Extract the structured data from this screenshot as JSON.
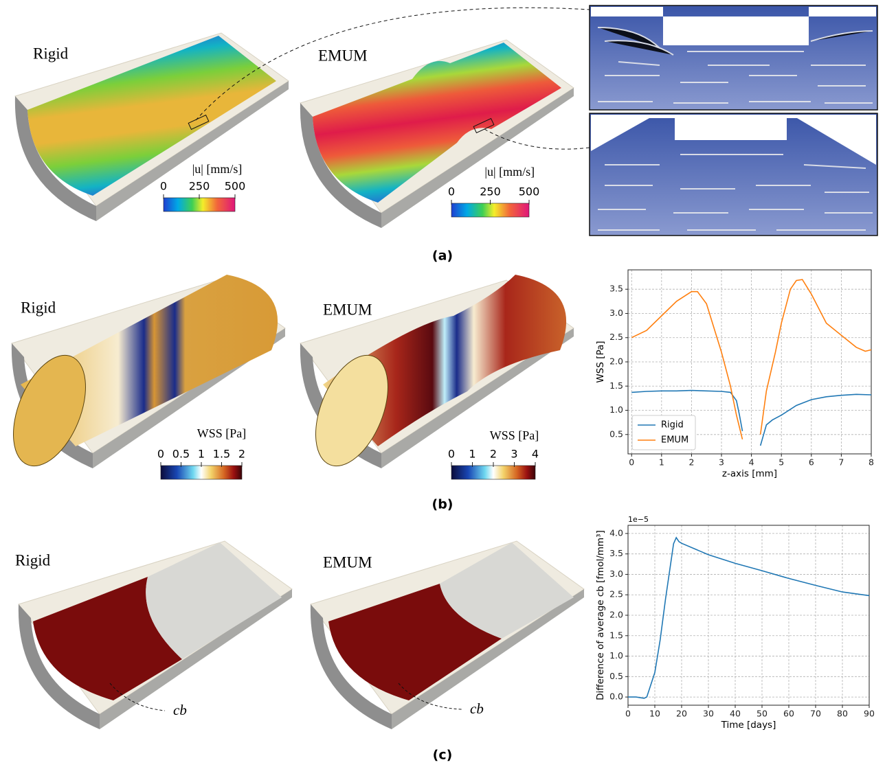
{
  "panels": [
    {
      "label": "(a)",
      "models": [
        {
          "name": "Rigid",
          "colorbar": {
            "title": "|u| [mm/s]",
            "ticks": [
              "0",
              "250",
              "500"
            ]
          }
        },
        {
          "name": "EMUM",
          "colorbar": {
            "title": "|u| [mm/s]",
            "ticks": [
              "0",
              "250",
              "500"
            ]
          }
        }
      ]
    },
    {
      "label": "(b)",
      "models": [
        {
          "name": "Rigid",
          "colorbar": {
            "title": "WSS [Pa]",
            "ticks": [
              "0",
              "0.5",
              "1",
              "1.5",
              "2"
            ]
          }
        },
        {
          "name": "EMUM",
          "colorbar": {
            "title": "WSS [Pa]",
            "ticks": [
              "0",
              "1",
              "2",
              "3",
              "4"
            ]
          }
        }
      ]
    },
    {
      "label": "(c)",
      "models": [
        {
          "name": "Rigid",
          "annotation": "cb"
        },
        {
          "name": "EMUM",
          "annotation": "cb"
        }
      ]
    }
  ],
  "chart_data": [
    {
      "type": "line",
      "xlabel": "z-axis [mm]",
      "ylabel": "WSS [Pa]",
      "xlim": [
        -0.12,
        8
      ],
      "ylim": [
        0.1,
        3.9
      ],
      "xticks": [
        0,
        1,
        2,
        3,
        4,
        5,
        6,
        7,
        8
      ],
      "yticks": [
        0.5,
        {
          "value": 1,
          "label": "1.0"
        },
        1.5,
        {
          "value": 2,
          "label": "2.0"
        },
        2.5,
        {
          "value": 3,
          "label": "3.0"
        },
        3.5
      ],
      "grid": true,
      "legend": "lower left",
      "series": [
        {
          "name": "Rigid",
          "color": "#1f77b4",
          "x": [
            0,
            0.5,
            1,
            1.5,
            2,
            2.5,
            3,
            3.3,
            3.5,
            3.6,
            3.7,
            3.95,
            4.3,
            4.5,
            4.7,
            5,
            5.5,
            6,
            6.5,
            7,
            7.5,
            8
          ],
          "values": [
            1.37,
            1.39,
            1.4,
            1.4,
            1.41,
            1.4,
            1.39,
            1.37,
            1.2,
            0.9,
            0.57,
            null,
            0.27,
            0.7,
            0.8,
            0.9,
            1.1,
            1.22,
            1.28,
            1.31,
            1.33,
            1.32
          ]
        },
        {
          "name": "EMUM",
          "color": "#ff7f0e",
          "x": [
            0,
            0.5,
            1,
            1.5,
            2,
            2.2,
            2.5,
            3,
            3.3,
            3.5,
            3.7,
            3.95,
            4.3,
            4.5,
            4.8,
            5,
            5.3,
            5.5,
            5.7,
            6,
            6.5,
            7,
            7.5,
            7.8,
            8
          ],
          "values": [
            2.5,
            2.65,
            2.95,
            3.25,
            3.45,
            3.45,
            3.2,
            2.2,
            1.5,
            0.9,
            0.4,
            null,
            0.5,
            1.4,
            2.2,
            2.8,
            3.5,
            3.68,
            3.7,
            3.4,
            2.8,
            2.55,
            2.3,
            2.22,
            2.25
          ]
        }
      ]
    },
    {
      "type": "line",
      "xlabel": "Time [days]",
      "ylabel": "Difference of average cb [fmol/mm³]",
      "y_offset_text": "1e−5",
      "xlim": [
        0,
        90
      ],
      "ylim": [
        -0.2,
        4.2
      ],
      "xticks": [
        0,
        10,
        20,
        30,
        40,
        50,
        60,
        70,
        80,
        90
      ],
      "yticks": [
        {
          "value": 0,
          "label": "0.0"
        },
        0.5,
        {
          "value": 1,
          "label": "1.0"
        },
        1.5,
        {
          "value": 2,
          "label": "2.0"
        },
        2.5,
        {
          "value": 3,
          "label": "3.0"
        },
        3.5,
        {
          "value": 4,
          "label": "4.0"
        }
      ],
      "grid": true,
      "series": [
        {
          "color": "#1f77b4",
          "x": [
            0,
            3,
            5,
            6,
            7,
            8,
            10,
            12,
            14,
            16,
            17,
            18,
            19,
            20,
            25,
            30,
            40,
            50,
            60,
            70,
            80,
            90
          ],
          "values": [
            0,
            0,
            -0.02,
            -0.03,
            0,
            0.2,
            0.6,
            1.4,
            2.4,
            3.3,
            3.75,
            3.9,
            3.8,
            3.76,
            3.62,
            3.48,
            3.27,
            3.09,
            2.9,
            2.73,
            2.57,
            2.48
          ]
        }
      ]
    }
  ]
}
